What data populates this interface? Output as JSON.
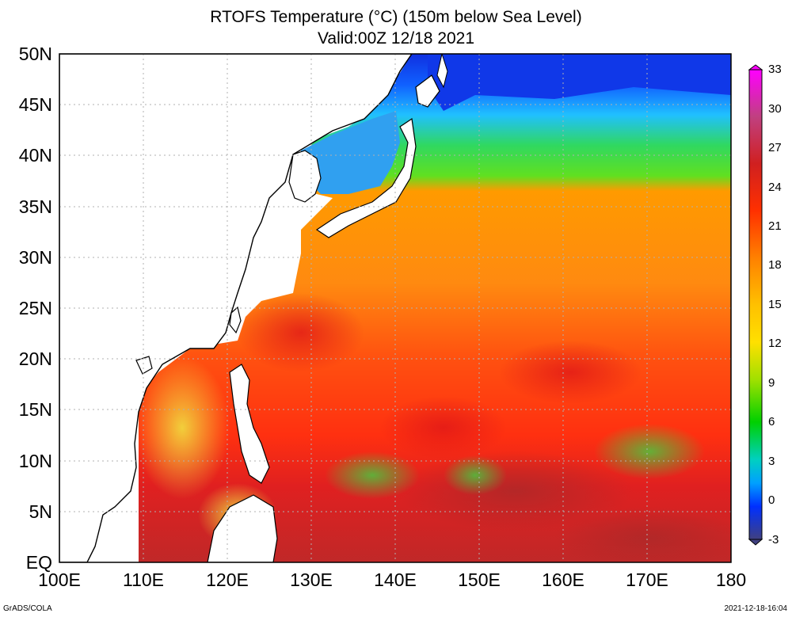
{
  "title": {
    "line1": "RTOFS Temperature (°C) (150m below Sea Level)",
    "line2": "Valid:00Z 12/18 2021"
  },
  "map": {
    "lat_labels": [
      "50N",
      "45N",
      "40N",
      "35N",
      "30N",
      "25N",
      "20N",
      "15N",
      "10N",
      "5N",
      "EQ"
    ],
    "lon_labels": [
      "100E",
      "110E",
      "120E",
      "130E",
      "140E",
      "150E",
      "160E",
      "170E",
      "180"
    ],
    "lat_range": [
      0,
      50
    ],
    "lon_range": [
      100,
      180
    ],
    "gridlines": "dotted"
  },
  "colorbar": {
    "ticks": [
      "33",
      "30",
      "27",
      "24",
      "21",
      "18",
      "15",
      "12",
      "9",
      "6",
      "3",
      "0",
      "-3"
    ],
    "colors": [
      "#ff00ff",
      "#c04080",
      "#d02020",
      "#ff3000",
      "#ff8000",
      "#ffb000",
      "#ffe000",
      "#a0e000",
      "#00d000",
      "#00d0a0",
      "#00c0ff",
      "#0080ff",
      "#0000ff",
      "#404080"
    ]
  },
  "footer": {
    "credit": "GrADS/COLA",
    "timestamp": "2021-12-18-16:04"
  }
}
